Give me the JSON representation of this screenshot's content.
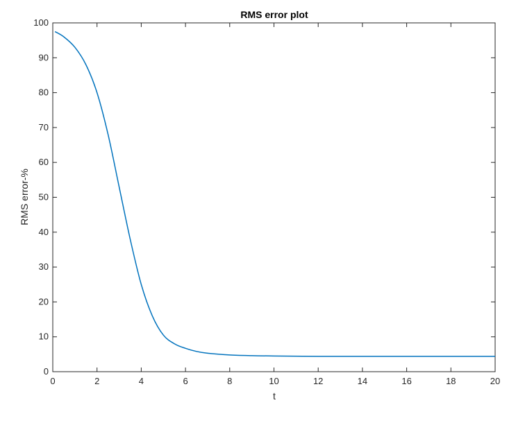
{
  "chart_data": {
    "type": "line",
    "title": "RMS error plot",
    "xlabel": "t",
    "ylabel": "RMS error-%",
    "xlim": [
      0,
      20
    ],
    "ylim": [
      0,
      100
    ],
    "xticks": [
      0,
      2,
      4,
      6,
      8,
      10,
      12,
      14,
      16,
      18,
      20
    ],
    "yticks": [
      0,
      10,
      20,
      30,
      40,
      50,
      60,
      70,
      80,
      90,
      100
    ],
    "grid": false,
    "line_color": "#0072BD",
    "series": [
      {
        "x": [
          0.1,
          0.5,
          1.0,
          1.5,
          2.0,
          2.5,
          3.0,
          3.5,
          4.0,
          4.5,
          5.0,
          5.5,
          6.0,
          6.5,
          7.0,
          8.0,
          9.0,
          10.0,
          12.0,
          14.0,
          16.0,
          18.0,
          20.0
        ],
        "y": [
          97.5,
          96.0,
          93.0,
          88.0,
          80.0,
          68.0,
          53.0,
          38.0,
          25.0,
          16.0,
          10.5,
          8.0,
          6.7,
          5.8,
          5.3,
          4.8,
          4.6,
          4.5,
          4.4,
          4.4,
          4.4,
          4.4,
          4.4
        ]
      }
    ]
  }
}
